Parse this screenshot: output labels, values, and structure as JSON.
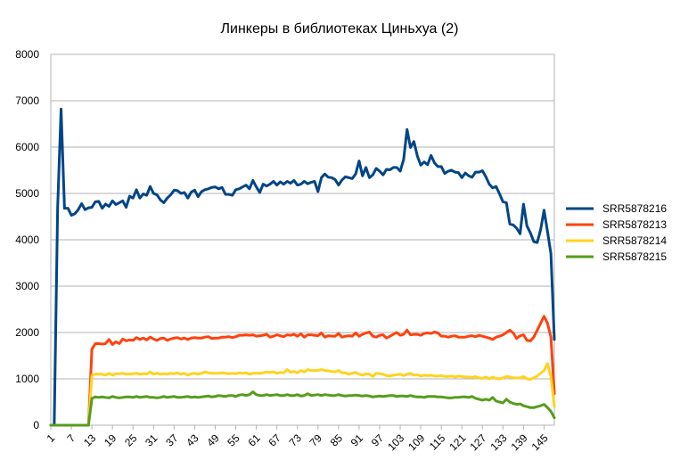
{
  "chart_data": {
    "type": "line",
    "title": "Линкеры в библиотеках Циньхуа (2)",
    "xlabel": "",
    "ylabel": "",
    "x_start": 1,
    "x_end": 148,
    "x_ticks": [
      1,
      7,
      13,
      19,
      25,
      31,
      37,
      43,
      49,
      55,
      61,
      67,
      73,
      79,
      85,
      91,
      97,
      103,
      109,
      115,
      121,
      127,
      133,
      139,
      145
    ],
    "ylim": [
      0,
      8000
    ],
    "y_ticks": [
      0,
      1000,
      2000,
      3000,
      4000,
      5000,
      6000,
      7000,
      8000
    ],
    "grid": true,
    "legend_position": "right",
    "series": [
      {
        "name": "SRR5878216",
        "color": "#004586",
        "values": [
          0,
          0,
          4700,
          6820,
          4680,
          4680,
          4530,
          4560,
          4650,
          4780,
          4650,
          4690,
          4700,
          4820,
          4830,
          4680,
          4770,
          4720,
          4840,
          4760,
          4800,
          4840,
          4700,
          4940,
          4900,
          5080,
          4900,
          4990,
          4960,
          5150,
          5000,
          4970,
          4860,
          4800,
          4900,
          4970,
          5070,
          5060,
          5000,
          5020,
          4900,
          5030,
          5070,
          4930,
          5040,
          5080,
          5100,
          5130,
          5140,
          5100,
          5130,
          4980,
          4980,
          4960,
          5080,
          5100,
          5140,
          5180,
          5100,
          5280,
          5140,
          5020,
          5200,
          5160,
          5200,
          5260,
          5180,
          5250,
          5200,
          5260,
          5220,
          5280,
          5180,
          5200,
          5260,
          5210,
          5240,
          5260,
          5040,
          5340,
          5420,
          5350,
          5340,
          5300,
          5180,
          5290,
          5360,
          5340,
          5320,
          5420,
          5700,
          5380,
          5560,
          5340,
          5400,
          5540,
          5480,
          5400,
          5520,
          5510,
          5560,
          5560,
          5480,
          5730,
          6380,
          5990,
          6120,
          5810,
          5610,
          5680,
          5620,
          5820,
          5660,
          5580,
          5580,
          5430,
          5480,
          5500,
          5460,
          5450,
          5340,
          5440,
          5380,
          5350,
          5460,
          5460,
          5490,
          5360,
          5200,
          5120,
          5150,
          4990,
          4820,
          4800,
          4340,
          4320,
          4250,
          4130,
          4770,
          4300,
          4150,
          3960,
          3940,
          4220,
          4640,
          4180,
          3700,
          1850
        ]
      },
      {
        "name": "SRR5878213",
        "color": "#ff420e",
        "values": [
          0,
          0,
          0,
          0,
          0,
          0,
          0,
          0,
          0,
          0,
          0,
          0,
          1640,
          1760,
          1760,
          1750,
          1760,
          1850,
          1740,
          1800,
          1760,
          1860,
          1820,
          1840,
          1830,
          1890,
          1850,
          1880,
          1840,
          1900,
          1860,
          1830,
          1870,
          1880,
          1830,
          1860,
          1880,
          1890,
          1860,
          1880,
          1850,
          1880,
          1890,
          1880,
          1880,
          1900,
          1910,
          1870,
          1880,
          1880,
          1900,
          1900,
          1910,
          1890,
          1910,
          1940,
          1940,
          1950,
          1940,
          1950,
          1920,
          1930,
          1940,
          1960,
          1900,
          1920,
          1950,
          1930,
          1910,
          1950,
          1940,
          1960,
          1920,
          1970,
          1900,
          1950,
          1950,
          1940,
          1930,
          1990,
          1900,
          1930,
          1920,
          1920,
          1980,
          1900,
          1920,
          1930,
          1920,
          1990,
          1920,
          1960,
          1990,
          2010,
          1920,
          1900,
          1940,
          1950,
          1880,
          1920,
          1960,
          2000,
          1940,
          1960,
          2050,
          1950,
          1960,
          1960,
          1940,
          1980,
          1990,
          1980,
          2010,
          1990,
          1920,
          1920,
          1900,
          1920,
          1930,
          1900,
          1900,
          1900,
          1920,
          1930,
          1910,
          1940,
          1920,
          1900,
          1880,
          1850,
          1900,
          1920,
          1950,
          2000,
          2050,
          1990,
          1870,
          1930,
          1950,
          1830,
          1820,
          1900,
          2050,
          2200,
          2350,
          2200,
          1900,
          680
        ]
      },
      {
        "name": "SRR5878214",
        "color": "#ffd320",
        "values": [
          0,
          0,
          0,
          0,
          0,
          0,
          0,
          0,
          0,
          0,
          0,
          0,
          1080,
          1100,
          1100,
          1100,
          1080,
          1120,
          1080,
          1110,
          1110,
          1120,
          1100,
          1100,
          1110,
          1120,
          1100,
          1110,
          1100,
          1150,
          1100,
          1120,
          1100,
          1110,
          1100,
          1120,
          1110,
          1130,
          1100,
          1120,
          1080,
          1110,
          1120,
          1100,
          1120,
          1150,
          1130,
          1120,
          1120,
          1120,
          1130,
          1120,
          1110,
          1120,
          1110,
          1130,
          1120,
          1130,
          1100,
          1120,
          1120,
          1120,
          1130,
          1150,
          1140,
          1150,
          1120,
          1140,
          1130,
          1200,
          1140,
          1160,
          1130,
          1180,
          1150,
          1200,
          1180,
          1180,
          1180,
          1200,
          1180,
          1170,
          1160,
          1150,
          1180,
          1130,
          1130,
          1100,
          1120,
          1140,
          1100,
          1080,
          1110,
          1100,
          1050,
          1120,
          1110,
          1100,
          1070,
          1060,
          1080,
          1090,
          1100,
          1070,
          1100,
          1120,
          1080,
          1090,
          1060,
          1080,
          1070,
          1080,
          1060,
          1060,
          1070,
          1050,
          1050,
          1060,
          1040,
          1060,
          1050,
          1040,
          1040,
          1030,
          1050,
          1020,
          1010,
          1040,
          1000,
          1040,
          1010,
          1000,
          1020,
          1050,
          1040,
          1020,
          1020,
          1020,
          1050,
          1000,
          990,
          1020,
          1060,
          1120,
          1180,
          1330,
          1050,
          400
        ]
      },
      {
        "name": "SRR5878215",
        "color": "#579d1c",
        "values": [
          0,
          0,
          0,
          0,
          0,
          0,
          0,
          0,
          0,
          0,
          0,
          0,
          580,
          610,
          600,
          610,
          600,
          590,
          620,
          600,
          590,
          600,
          610,
          610,
          600,
          620,
          600,
          610,
          620,
          600,
          600,
          590,
          600,
          620,
          600,
          610,
          620,
          600,
          600,
          610,
          620,
          600,
          610,
          600,
          610,
          620,
          630,
          610,
          620,
          640,
          630,
          620,
          640,
          640,
          620,
          650,
          660,
          640,
          660,
          720,
          660,
          640,
          640,
          660,
          640,
          650,
          660,
          640,
          640,
          660,
          640,
          640,
          660,
          630,
          640,
          680,
          640,
          650,
          660,
          640,
          660,
          650,
          640,
          640,
          660,
          640,
          630,
          640,
          640,
          650,
          640,
          630,
          640,
          630,
          610,
          620,
          630,
          620,
          630,
          640,
          640,
          620,
          630,
          630,
          620,
          640,
          620,
          610,
          610,
          600,
          620,
          620,
          620,
          610,
          610,
          600,
          590,
          590,
          600,
          600,
          610,
          610,
          600,
          620,
          580,
          560,
          540,
          560,
          540,
          600,
          520,
          500,
          480,
          560,
          500,
          470,
          450,
          460,
          420,
          400,
          380,
          380,
          400,
          420,
          450,
          380,
          300,
          160
        ]
      }
    ]
  }
}
